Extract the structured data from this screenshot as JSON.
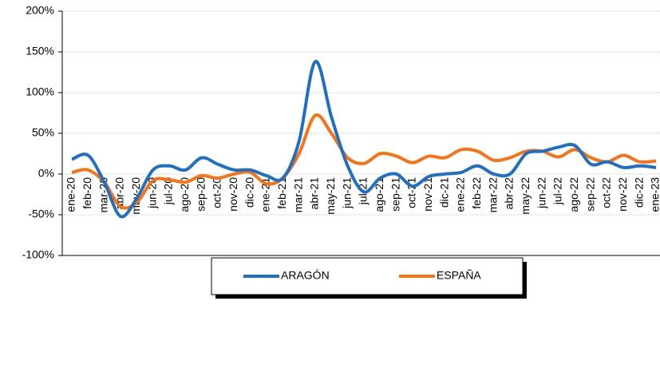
{
  "chart_data": {
    "type": "line",
    "categories": [
      "ene-20",
      "feb-20",
      "mar-20",
      "abr-20",
      "may-20",
      "jun-20",
      "jul-20",
      "ago-20",
      "sep-20",
      "oct-20",
      "nov-20",
      "dic-20",
      "ene-21",
      "feb-21",
      "mar-21",
      "abr-21",
      "may-21",
      "jun-21",
      "jul-21",
      "ago-21",
      "sep-21",
      "oct-21",
      "nov-21",
      "dic-21",
      "ene-22",
      "feb-22",
      "mar-22",
      "abr-22",
      "may-22",
      "jun-22",
      "jul-22",
      "ago-22",
      "sep-22",
      "oct-22",
      "nov-22",
      "dic-22",
      "ene-23"
    ],
    "series": [
      {
        "name": "ARAGÓN",
        "color": "#1f6fc5",
        "values": [
          18,
          23,
          -10,
          -52,
          -30,
          5,
          10,
          5,
          20,
          12,
          5,
          5,
          -2,
          -5,
          40,
          138,
          70,
          10,
          -22,
          -5,
          0,
          -15,
          -3,
          0,
          2,
          10,
          0,
          0,
          25,
          28,
          33,
          35,
          12,
          15,
          8,
          10,
          8
        ]
      },
      {
        "name": "ESPAÑA",
        "color": "#f97316",
        "values": [
          2,
          5,
          -10,
          -40,
          -35,
          -8,
          -7,
          -10,
          -2,
          -5,
          0,
          2,
          -12,
          -5,
          25,
          72,
          50,
          20,
          13,
          25,
          22,
          14,
          22,
          20,
          30,
          28,
          17,
          20,
          28,
          28,
          21,
          30,
          20,
          15,
          23,
          15,
          16
        ]
      }
    ],
    "ylim": [
      -100,
      200
    ],
    "yticks": [
      {
        "value": -100,
        "label": "-100%"
      },
      {
        "value": -50,
        "label": "-50%"
      },
      {
        "value": 0,
        "label": "0%"
      },
      {
        "value": 50,
        "label": "50%"
      },
      {
        "value": 100,
        "label": "100%"
      },
      {
        "value": 150,
        "label": "150%"
      },
      {
        "value": 200,
        "label": "200%"
      }
    ],
    "grid": true
  }
}
